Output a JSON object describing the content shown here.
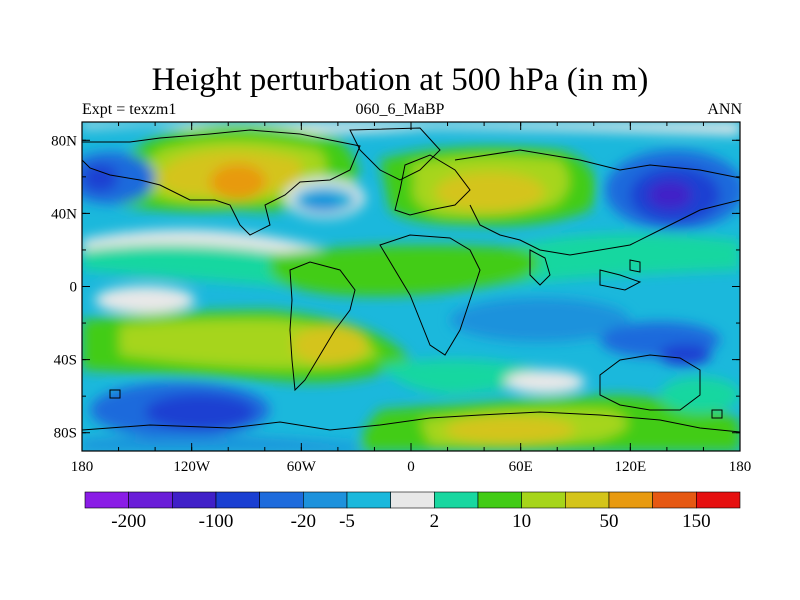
{
  "title": "Height perturbation at 500 hPa (in m)",
  "subtitle_left": "Expt = texzm1",
  "subtitle_center": "060_6_MaBP",
  "subtitle_right": "ANN",
  "map": {
    "projection": "cylindrical-equidistant",
    "lon_range": [
      -180,
      180
    ],
    "lat_range": [
      -90,
      90
    ],
    "lat_ticks": [
      {
        "value": 80,
        "label": "80N"
      },
      {
        "value": 40,
        "label": "40N"
      },
      {
        "value": 0,
        "label": "0"
      },
      {
        "value": -40,
        "label": "40S"
      },
      {
        "value": -80,
        "label": "80S"
      }
    ],
    "lon_ticks": [
      {
        "value": -180,
        "label": "180"
      },
      {
        "value": -120,
        "label": "120W"
      },
      {
        "value": -60,
        "label": "60W"
      },
      {
        "value": 0,
        "label": "0"
      },
      {
        "value": 60,
        "label": "60E"
      },
      {
        "value": 120,
        "label": "120E"
      },
      {
        "value": 180,
        "label": "180"
      }
    ],
    "minor_lon_step": 20,
    "minor_lat_step": 20
  },
  "colorbar": {
    "colors": [
      "#8a1ce6",
      "#6a1ed8",
      "#4020c8",
      "#1a3fd2",
      "#1e6bdc",
      "#1e92dc",
      "#1bb8dc",
      "#e8e8e8",
      "#19d7a0",
      "#42cc16",
      "#a6d51a",
      "#d4c41a",
      "#e89a10",
      "#e65812",
      "#e61010"
    ],
    "labels": [
      {
        "boundary": 1,
        "text": "-200"
      },
      {
        "boundary": 3,
        "text": "-100"
      },
      {
        "boundary": 5,
        "text": "-20"
      },
      {
        "boundary": 6,
        "text": "-5"
      },
      {
        "boundary": 8,
        "text": "2"
      },
      {
        "boundary": 10,
        "text": "10"
      },
      {
        "boundary": 12,
        "text": "50"
      },
      {
        "boundary": 14,
        "text": "150"
      }
    ]
  }
}
